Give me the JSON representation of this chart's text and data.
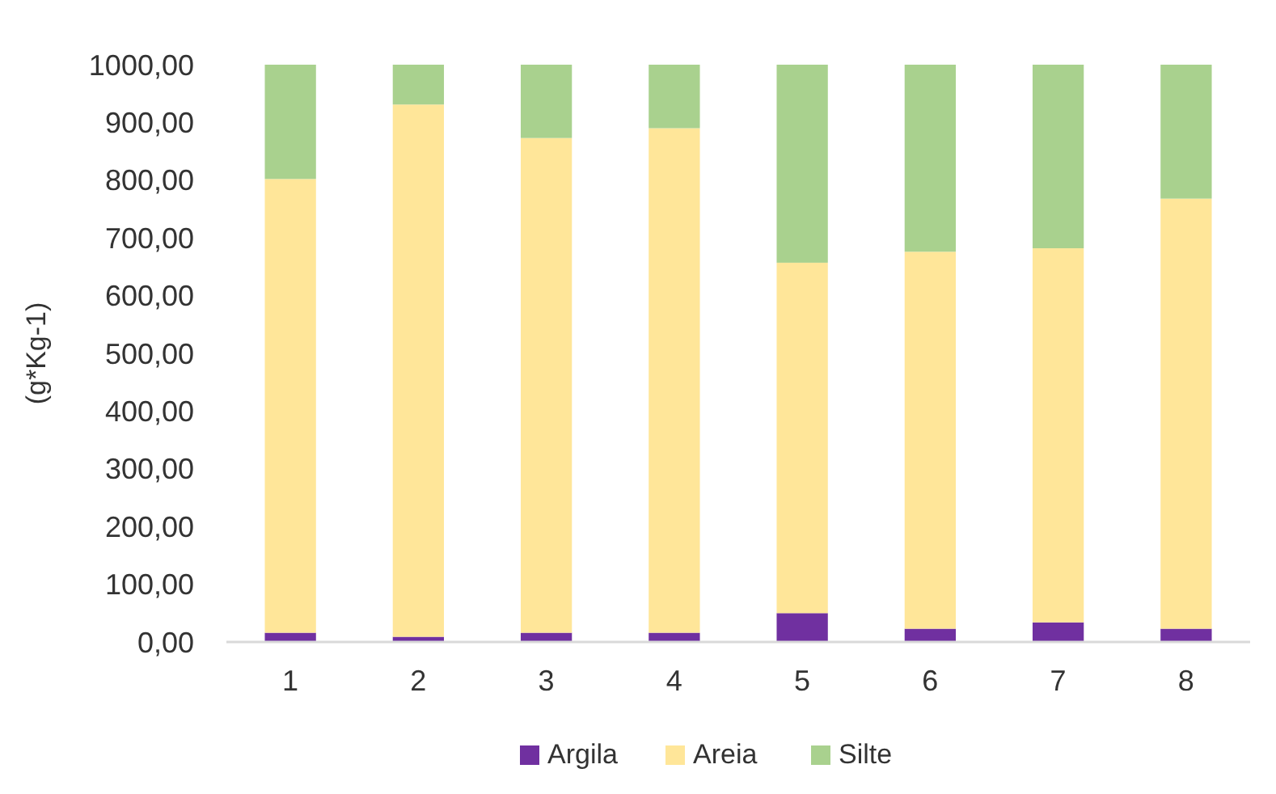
{
  "chart_data": {
    "type": "bar",
    "stacked": true,
    "ylabel": "(g*Kg-1)",
    "categories": [
      "1",
      "2",
      "3",
      "4",
      "5",
      "6",
      "7",
      "8"
    ],
    "series": [
      {
        "name": "Argila",
        "color": "#7030a0",
        "values": [
          16,
          9,
          16,
          16,
          50,
          23,
          34,
          23
        ]
      },
      {
        "name": "Areia",
        "color": "#ffe699",
        "values": [
          786,
          922,
          857,
          874,
          607,
          653,
          648,
          745
        ]
      },
      {
        "name": "Silte",
        "color": "#a9d18e",
        "values": [
          198,
          69,
          127,
          110,
          343,
          324,
          318,
          232
        ]
      }
    ],
    "ylim": [
      0,
      1000
    ],
    "yticks": [
      {
        "value": 0,
        "label": "0,00"
      },
      {
        "value": 100,
        "label": "100,00"
      },
      {
        "value": 200,
        "label": "200,00"
      },
      {
        "value": 300,
        "label": "300,00"
      },
      {
        "value": 400,
        "label": "400,00"
      },
      {
        "value": 500,
        "label": "500,00"
      },
      {
        "value": 600,
        "label": "600,00"
      },
      {
        "value": 700,
        "label": "700,00"
      },
      {
        "value": 800,
        "label": "800,00"
      },
      {
        "value": 900,
        "label": "900,00"
      },
      {
        "value": 1000,
        "label": "1000,00"
      }
    ],
    "legend": "bottom"
  }
}
